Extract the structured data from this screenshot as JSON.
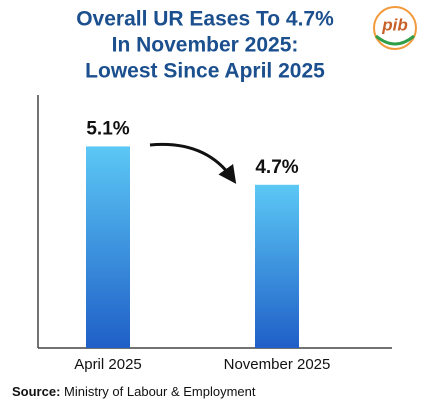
{
  "logo": "pib",
  "source_label": "Source:",
  "source": "Ministry of Labour & Employment",
  "chart_data": {
    "type": "bar",
    "title": [
      "Overall UR Eases To 4.7%",
      "In November 2025:",
      "Lowest Since April 2025"
    ],
    "categories": [
      "April 2025",
      "November 2025"
    ],
    "values": [
      5.1,
      4.7
    ],
    "value_labels": [
      "5.1%",
      "4.7%"
    ],
    "color": "#1f5fc7",
    "ylim": [
      3,
      5.5
    ]
  }
}
